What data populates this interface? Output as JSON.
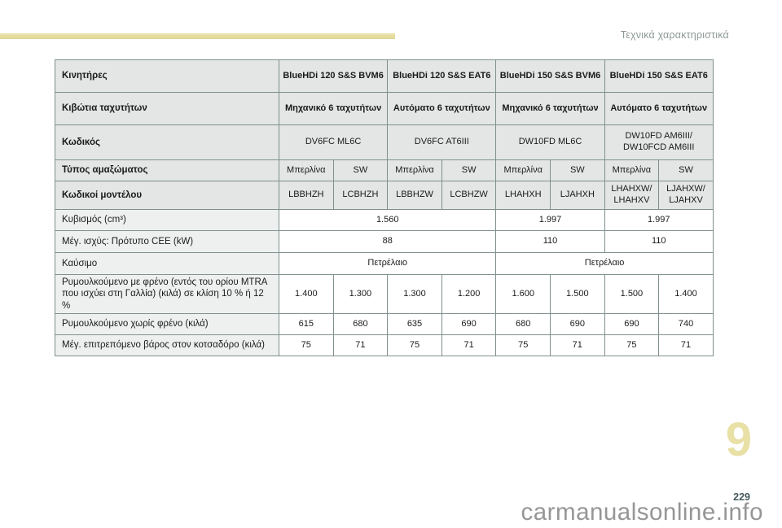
{
  "page": {
    "running_header": "Τεχνικά χαρακτηριστικά",
    "chapter_number": "9",
    "page_number": "229",
    "watermark": "carmanualsonline.info"
  },
  "colors": {
    "accent_khaki": "#e4db9e",
    "running_header_text": "#8c9995",
    "table_border": "#7f908e",
    "header_cell_bg": "#e3e6e4",
    "label_cell_bg": "#eef0ef",
    "page_number_text": "#47585e",
    "watermark_text": "#969696"
  },
  "table": {
    "rows": [
      {
        "label": "Κινητήρες",
        "label_bold": true,
        "section": "head",
        "cells": [
          {
            "t": "BlueHDi 120 S&S BVM6",
            "span": 2,
            "b": true
          },
          {
            "t": "BlueHDi 120 S&S EAT6",
            "span": 2,
            "b": true
          },
          {
            "t": "BlueHDi 150 S&S BVM6",
            "span": 2,
            "b": true
          },
          {
            "t": "BlueHDi 150 S&S EAT6",
            "span": 2,
            "b": true
          }
        ]
      },
      {
        "label": "Κιβώτια ταχυτήτων",
        "label_bold": true,
        "section": "head",
        "cells": [
          {
            "t": "Μηχανικό 6 ταχυτήτων",
            "span": 2,
            "b": true
          },
          {
            "t": "Αυτόματο 6 ταχυτήτων",
            "span": 2,
            "b": true
          },
          {
            "t": "Μηχανικό 6 ταχυτήτων",
            "span": 2,
            "b": true
          },
          {
            "t": "Αυτόματο 6 ταχυτήτων",
            "span": 2,
            "b": true
          }
        ]
      },
      {
        "label": "Κωδικός",
        "label_bold": true,
        "section": "head",
        "cells": [
          {
            "t": "DV6FC ML6C",
            "span": 2
          },
          {
            "t": "DV6FC AT6III",
            "span": 2
          },
          {
            "t": "DW10FD ML6C",
            "span": 2
          },
          {
            "t": "DW10FD AM6III/\nDW10FCD AM6III",
            "span": 2
          }
        ]
      },
      {
        "label": "Τύπος αμαξώματος",
        "label_bold": true,
        "section": "head",
        "cells": [
          {
            "t": "Μπερλίνα"
          },
          {
            "t": "SW"
          },
          {
            "t": "Μπερλίνα"
          },
          {
            "t": "SW"
          },
          {
            "t": "Μπερλίνα"
          },
          {
            "t": "SW"
          },
          {
            "t": "Μπερλίνα"
          },
          {
            "t": "SW"
          }
        ]
      },
      {
        "label": "Κωδικοί μοντέλου",
        "label_bold": true,
        "section": "head",
        "cells": [
          {
            "t": "LBBHZH"
          },
          {
            "t": "LCBHZH"
          },
          {
            "t": "LBBHZW"
          },
          {
            "t": "LCBHZW"
          },
          {
            "t": "LHAHXH"
          },
          {
            "t": "LJAHXH"
          },
          {
            "t": "LHAHXW/\nLHAHXV"
          },
          {
            "t": "LJAHXW/\nLJAHXV"
          }
        ]
      },
      {
        "label": "Κυβισμός (cm³)",
        "label_bold": false,
        "section": "body",
        "cells": [
          {
            "t": "1.560",
            "span": 4
          },
          {
            "t": "1.997",
            "span": 2
          },
          {
            "t": "1.997",
            "span": 2
          }
        ]
      },
      {
        "label": "Μέγ. ισχύς: Πρότυπο CEE (kW)",
        "label_bold": false,
        "section": "body",
        "cells": [
          {
            "t": "88",
            "span": 4
          },
          {
            "t": "110",
            "span": 2
          },
          {
            "t": "110",
            "span": 2
          }
        ]
      },
      {
        "label": "Καύσιμο",
        "label_bold": false,
        "section": "body",
        "cells": [
          {
            "t": "Πετρέλαιο",
            "span": 4
          },
          {
            "t": "Πετρέλαιο",
            "span": 4
          }
        ]
      },
      {
        "label": "Ρυμουλκούμενο με φρένο (εντός του ορίου MTRA που ισχύει στη Γαλλία) (κιλά) σε κλίση 10 % ή 12 %",
        "label_bold": false,
        "section": "body",
        "cells": [
          {
            "t": "1.400"
          },
          {
            "t": "1.300"
          },
          {
            "t": "1.300"
          },
          {
            "t": "1.200"
          },
          {
            "t": "1.600"
          },
          {
            "t": "1.500"
          },
          {
            "t": "1.500"
          },
          {
            "t": "1.400"
          }
        ]
      },
      {
        "label": "Ρυμουλκούμενο χωρίς φρένο (κιλά)",
        "label_bold": false,
        "section": "body",
        "cells": [
          {
            "t": "615"
          },
          {
            "t": "680"
          },
          {
            "t": "635"
          },
          {
            "t": "690"
          },
          {
            "t": "680"
          },
          {
            "t": "690"
          },
          {
            "t": "690"
          },
          {
            "t": "740"
          }
        ]
      },
      {
        "label": "Μέγ. επιτρεπόμενο βάρος στον κοτσαδόρο (κιλά)",
        "label_bold": false,
        "section": "body",
        "cells": [
          {
            "t": "75"
          },
          {
            "t": "71"
          },
          {
            "t": "75"
          },
          {
            "t": "71"
          },
          {
            "t": "75"
          },
          {
            "t": "71"
          },
          {
            "t": "75"
          },
          {
            "t": "71"
          }
        ]
      }
    ]
  }
}
